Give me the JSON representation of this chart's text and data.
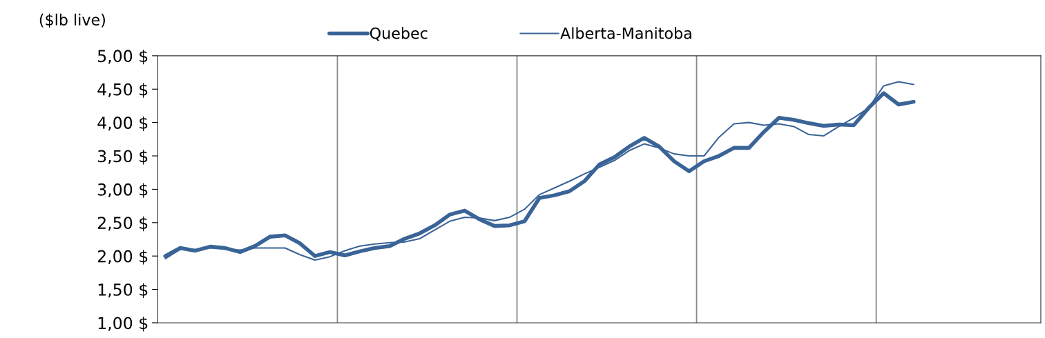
{
  "chart_data": {
    "type": "line",
    "ylabel": "($lb live)",
    "categories": [
      null,
      null,
      null,
      null,
      null,
      null,
      null,
      null,
      null,
      null,
      null,
      null,
      null,
      null,
      null,
      null,
      null,
      null,
      null,
      null,
      null,
      null,
      null,
      null,
      null,
      null,
      null,
      null,
      null,
      null,
      null,
      null,
      null,
      null,
      null,
      null,
      null,
      null,
      null,
      null,
      null,
      null,
      null,
      null,
      null,
      null,
      null,
      null,
      null,
      null,
      null,
      null,
      null,
      null,
      null,
      null,
      null,
      null,
      null
    ],
    "series": [
      {
        "name": "Quebec",
        "color": "#3a6497",
        "values": [
          2.0,
          2.12,
          2.08,
          2.14,
          2.12,
          2.06,
          2.15,
          2.29,
          2.31,
          2.19,
          2.0,
          2.06,
          2.01,
          2.07,
          2.12,
          2.15,
          2.26,
          2.34,
          2.46,
          2.62,
          2.68,
          2.55,
          2.45,
          2.46,
          2.52,
          2.87,
          2.91,
          2.97,
          3.12,
          3.37,
          3.48,
          3.64,
          3.77,
          3.64,
          3.42,
          3.27,
          3.42,
          3.5,
          3.62,
          3.62,
          3.86,
          4.07,
          4.04,
          3.99,
          3.95,
          3.97,
          3.96,
          4.22,
          4.44,
          4.27,
          4.31,
          null,
          null,
          null,
          null,
          null,
          null,
          null,
          null
        ]
      },
      {
        "name": "Alberta-Manitoba",
        "color": "#3a6497",
        "values": [
          1.96,
          2.1,
          2.08,
          2.14,
          2.1,
          2.09,
          2.12,
          2.12,
          2.12,
          2.02,
          1.94,
          1.99,
          2.08,
          2.15,
          2.18,
          2.2,
          2.21,
          2.26,
          2.39,
          2.52,
          2.58,
          2.57,
          2.53,
          2.58,
          2.7,
          2.92,
          3.02,
          3.12,
          3.23,
          3.33,
          3.43,
          3.58,
          3.68,
          3.62,
          3.53,
          3.5,
          3.5,
          3.78,
          3.98,
          4.0,
          3.96,
          3.98,
          3.94,
          3.82,
          3.8,
          3.94,
          4.07,
          4.22,
          4.55,
          4.61,
          4.57,
          null,
          null,
          null,
          null,
          null,
          null,
          null,
          null
        ]
      }
    ],
    "ylim": [
      1,
      5
    ],
    "yticks": [
      {
        "value": 1,
        "label": "1,00 $"
      },
      {
        "value": 1.5,
        "label": "1,50 $"
      },
      {
        "value": 2,
        "label": "2,00 $"
      },
      {
        "value": 2.5,
        "label": "2,50 $"
      },
      {
        "value": 3,
        "label": "3,00 $"
      },
      {
        "value": 3.5,
        "label": "3,50 $"
      },
      {
        "value": 4,
        "label": "4,00 $"
      },
      {
        "value": 4.5,
        "label": "4,50 $"
      },
      {
        "value": 5,
        "label": "5,00 $"
      }
    ],
    "tick_labels": "y",
    "legend": "top",
    "line_style": "solid"
  }
}
